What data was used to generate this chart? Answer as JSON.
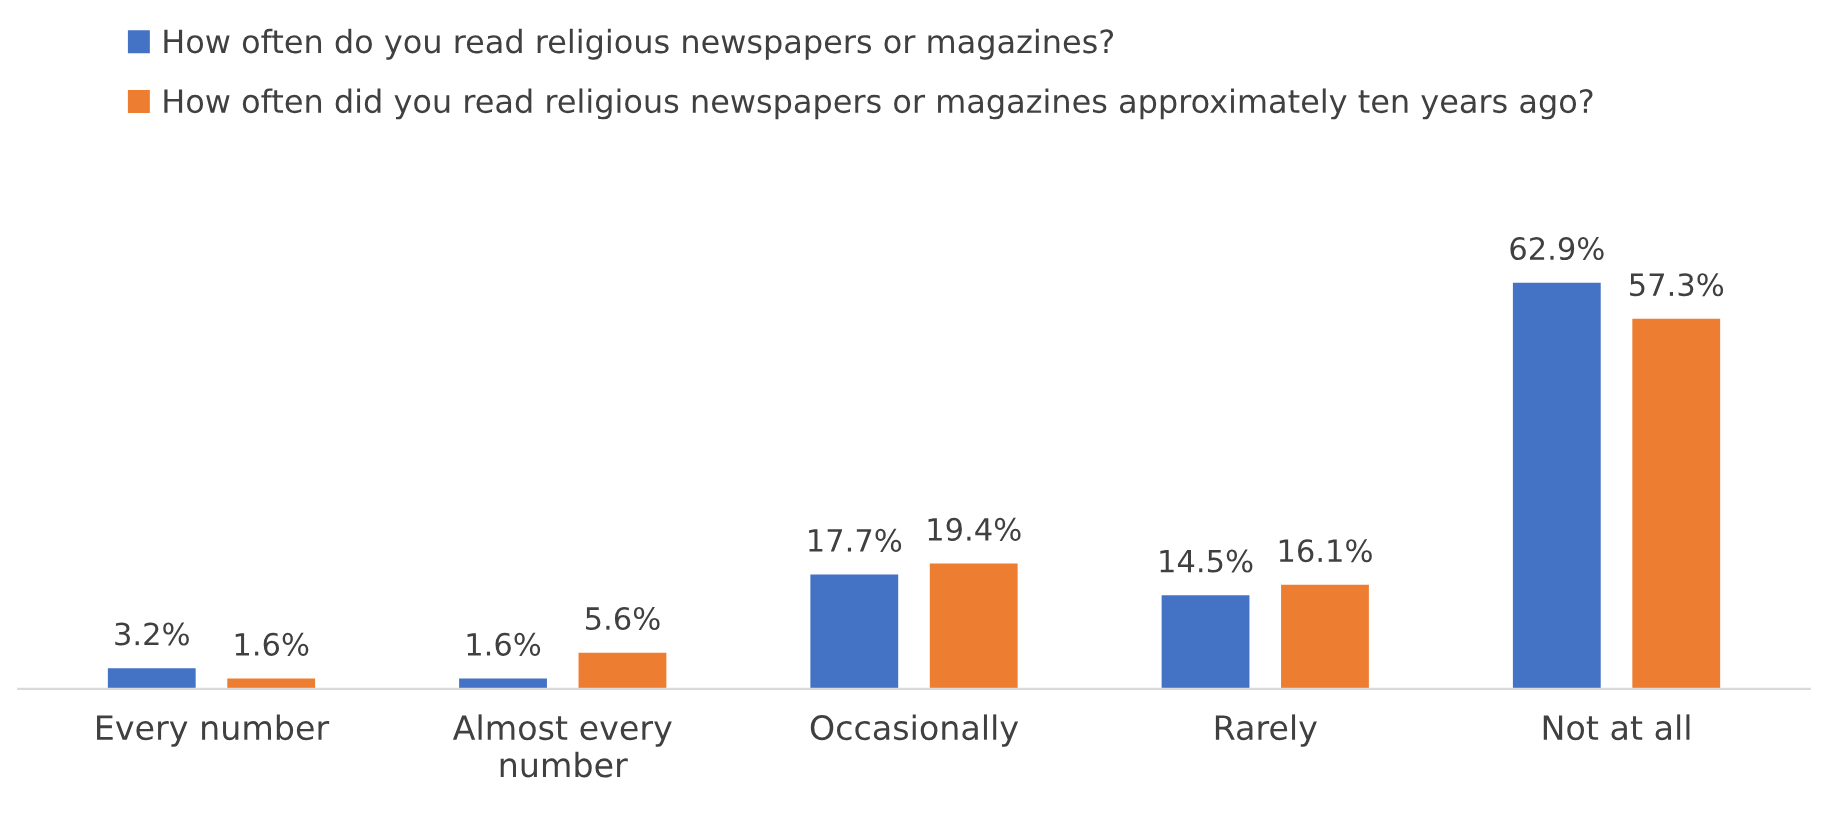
{
  "chart_data": {
    "type": "bar",
    "categories": [
      "Every number",
      "Almost every number",
      "Occasionally",
      "Rarely",
      "Not at all"
    ],
    "series": [
      {
        "name": "How often do you read religious newspapers or magazines?",
        "color": "#4472c4",
        "values": [
          3.2,
          1.6,
          17.7,
          14.5,
          62.9
        ],
        "value_labels": [
          "3.2%",
          "1.6%",
          "17.7%",
          "14.5%",
          "62.9%"
        ]
      },
      {
        "name": "How often did you read religious newspapers or magazines approximately ten years ago?",
        "color": "#ed7d31",
        "values": [
          1.6,
          5.6,
          19.4,
          16.1,
          57.3
        ],
        "value_labels": [
          "1.6%",
          "5.6%",
          "19.4%",
          "16.1%",
          "57.3%"
        ]
      }
    ],
    "legend": "top left",
    "grid": false
  }
}
